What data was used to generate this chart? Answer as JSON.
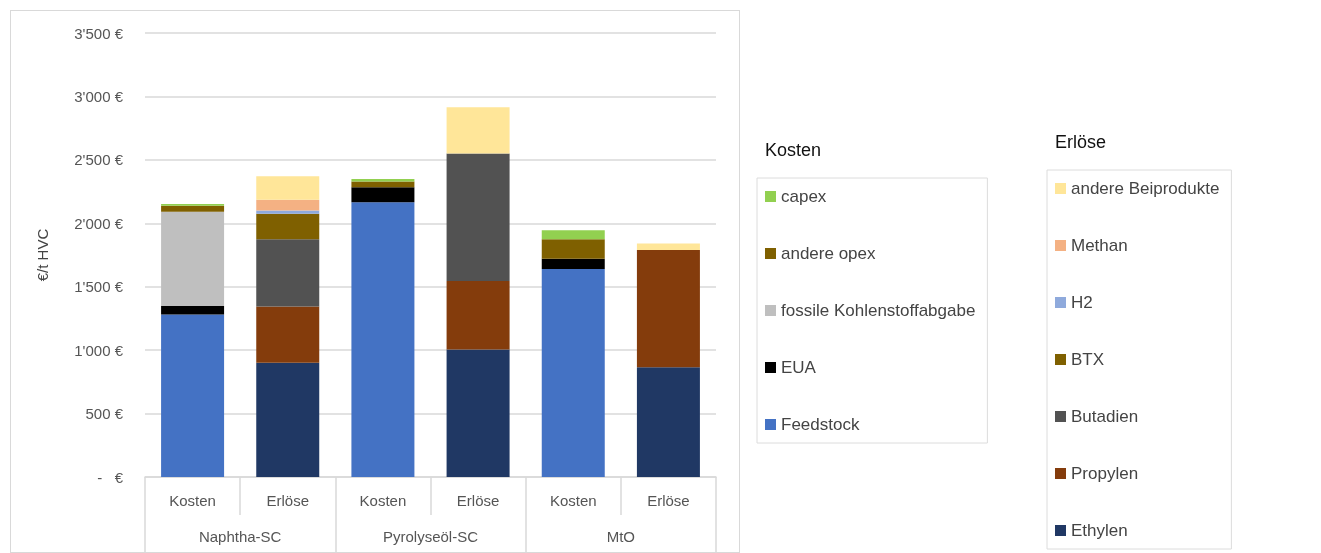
{
  "chart_data": {
    "type": "bar",
    "stacked": true,
    "ylabel": "€/t HVC",
    "categories": [
      "Kosten",
      "Erlöse",
      "Kosten",
      "Erlöse",
      "Kosten",
      "Erlöse"
    ],
    "annotations": [
      "Naphtha-SC",
      "Pyrolyseöl-SC",
      "MtO"
    ],
    "ylim": [
      0,
      3500
    ],
    "yticks": [
      {
        "value": 0,
        "label": "-   €"
      },
      {
        "value": 500,
        "label": "500 €"
      },
      {
        "value": 1000,
        "label": "1'000 €"
      },
      {
        "value": 1500,
        "label": "1'500 €"
      },
      {
        "value": 2000,
        "label": "2'000 €"
      },
      {
        "value": 2500,
        "label": "2'500 €"
      },
      {
        "value": 3000,
        "label": "3'000 €"
      },
      {
        "value": 3500,
        "label": "3'500 €"
      }
    ],
    "grid": "y",
    "legend": "right",
    "legend_title": [
      "Kosten",
      "Erlöse"
    ],
    "series": [
      {
        "name": "Feedstock",
        "color": "#4472c4",
        "values": [
          1280,
          null,
          2165,
          null,
          1640,
          null
        ]
      },
      {
        "name": "EUA",
        "color": "#000000",
        "values": [
          70,
          null,
          120,
          null,
          80,
          null
        ]
      },
      {
        "name": "fossile Kohlenstoffabgabe",
        "color": "#bfbfbf",
        "values": [
          740,
          null,
          null,
          null,
          null,
          null
        ]
      },
      {
        "name": "andere opex",
        "color": "#7f6000",
        "values": [
          48,
          null,
          45,
          null,
          155,
          null
        ]
      },
      {
        "name": "capex",
        "color": "#92d050",
        "values": [
          15,
          null,
          20,
          null,
          70,
          null
        ]
      },
      {
        "name": "Ethylen",
        "color": "#203864",
        "values": [
          null,
          900,
          null,
          1005,
          null,
          865
        ]
      },
      {
        "name": "Propylen",
        "color": "#843c0c",
        "values": [
          null,
          445,
          null,
          540,
          null,
          925
        ]
      },
      {
        "name": "Butadien",
        "color": "#525252",
        "values": [
          null,
          530,
          null,
          1005,
          null,
          null
        ]
      },
      {
        "name": "BTX",
        "color": "#7f6000",
        "values": [
          null,
          200,
          null,
          null,
          null,
          null
        ]
      },
      {
        "name": "H2",
        "color": "#8faadc",
        "values": [
          null,
          25,
          null,
          null,
          null,
          null
        ]
      },
      {
        "name": "Methan",
        "color": "#f4b183",
        "values": [
          null,
          85,
          null,
          null,
          null,
          null
        ]
      },
      {
        "name": "andere Beiprodukte",
        "color": "#ffe699",
        "values": [
          null,
          185,
          null,
          365,
          null,
          50
        ]
      }
    ]
  }
}
